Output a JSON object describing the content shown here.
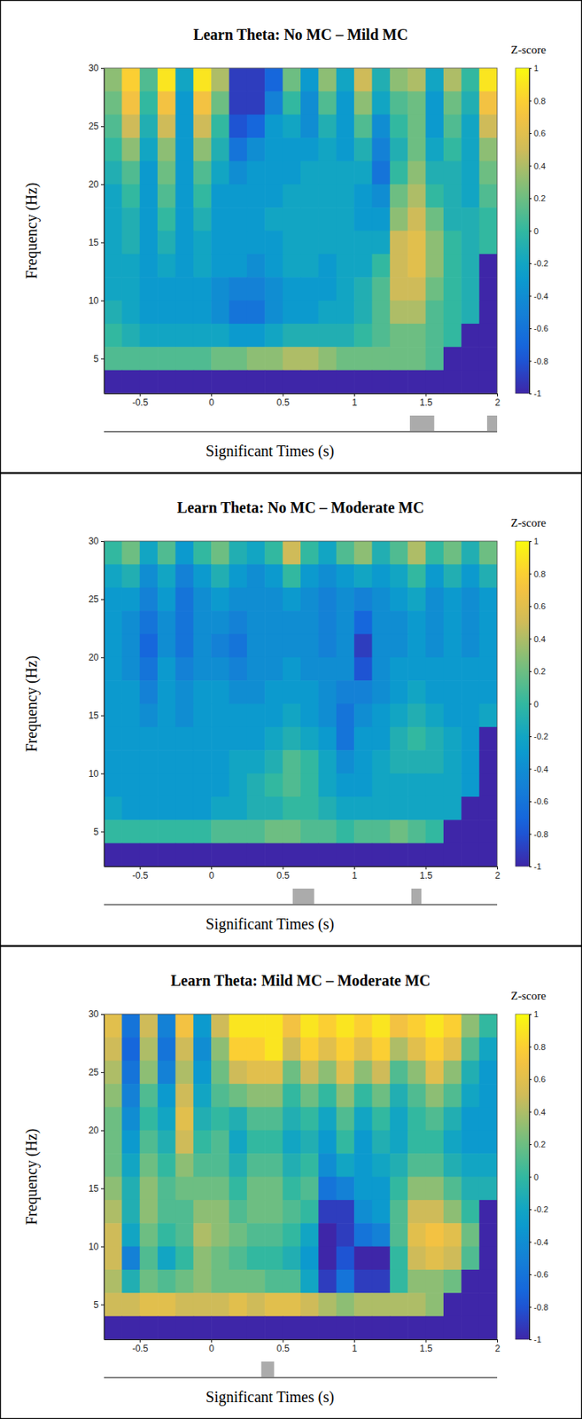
{
  "chart_data": [
    {
      "type": "heatmap",
      "title": "Learn Theta: No MC – Mild MC",
      "x_label": "Significant Times (s)",
      "y_label": "Frequency (Hz)",
      "x": [
        -0.6875,
        -0.5625,
        -0.4375,
        -0.3125,
        -0.1875,
        -0.0625,
        0.0625,
        0.1875,
        0.3125,
        0.4375,
        0.5625,
        0.6875,
        0.8125,
        0.9375,
        1.0625,
        1.1875,
        1.3125,
        1.4375,
        1.5625,
        1.6875,
        1.8125,
        1.9375
      ],
      "y": [
        29,
        27,
        25,
        23,
        21,
        19,
        17,
        15,
        13,
        11,
        9,
        7,
        5,
        3
      ],
      "values": [
        [
          0.3,
          0.8,
          0.1,
          0.9,
          -0.2,
          0.9,
          0.4,
          -0.9,
          -0.9,
          -0.7,
          0.2,
          -0.3,
          0.3,
          -0.2,
          0.5,
          -0.1,
          0.3,
          0.4,
          -0.2,
          0.4,
          0.0,
          0.9
        ],
        [
          0.2,
          0.7,
          0.0,
          0.7,
          -0.3,
          0.7,
          0.2,
          -0.9,
          -0.9,
          -0.5,
          0.0,
          -0.4,
          0.1,
          -0.3,
          0.3,
          -0.2,
          0.1,
          0.2,
          -0.3,
          0.2,
          -0.1,
          0.7
        ],
        [
          0.1,
          0.5,
          -0.1,
          0.5,
          -0.3,
          0.5,
          0.0,
          -0.8,
          -0.7,
          -0.3,
          -0.2,
          -0.4,
          -0.1,
          -0.3,
          0.1,
          -0.4,
          0.0,
          0.2,
          -0.3,
          0.1,
          -0.2,
          0.5
        ],
        [
          0.0,
          0.3,
          -0.2,
          0.3,
          -0.3,
          0.3,
          -0.1,
          -0.6,
          -0.4,
          -0.3,
          -0.3,
          -0.3,
          -0.2,
          -0.3,
          -0.1,
          -0.5,
          -0.1,
          0.2,
          -0.2,
          0.0,
          -0.2,
          0.3
        ],
        [
          -0.1,
          0.1,
          -0.3,
          0.2,
          -0.3,
          0.1,
          -0.2,
          -0.4,
          -0.3,
          -0.3,
          -0.3,
          -0.2,
          -0.2,
          -0.2,
          -0.2,
          -0.6,
          0.0,
          0.3,
          -0.1,
          -0.1,
          -0.2,
          0.2
        ],
        [
          -0.2,
          0.0,
          -0.3,
          0.1,
          -0.3,
          0.0,
          -0.3,
          -0.3,
          -0.3,
          -0.3,
          -0.2,
          -0.2,
          -0.2,
          -0.2,
          -0.3,
          -0.4,
          0.2,
          0.4,
          0.0,
          -0.1,
          -0.2,
          0.1
        ],
        [
          -0.2,
          -0.1,
          -0.3,
          0.0,
          -0.3,
          -0.1,
          -0.3,
          -0.3,
          -0.3,
          -0.2,
          -0.2,
          -0.2,
          -0.2,
          -0.2,
          -0.3,
          -0.3,
          0.3,
          0.5,
          0.2,
          -0.1,
          -0.1,
          0.0
        ],
        [
          -0.2,
          -0.1,
          -0.3,
          -0.1,
          -0.3,
          -0.2,
          -0.3,
          -0.3,
          -0.3,
          -0.3,
          -0.2,
          -0.2,
          -0.2,
          -0.2,
          -0.2,
          -0.2,
          0.5,
          0.6,
          0.3,
          0.0,
          -0.1,
          0.0
        ],
        [
          -0.2,
          -0.2,
          -0.3,
          -0.2,
          -0.3,
          -0.2,
          -0.3,
          -0.3,
          -0.4,
          -0.3,
          -0.2,
          -0.2,
          -0.3,
          -0.2,
          -0.2,
          0.0,
          0.5,
          0.6,
          0.3,
          0.0,
          -0.1,
          -1
        ],
        [
          -0.2,
          -0.2,
          -0.3,
          -0.3,
          -0.3,
          -0.3,
          -0.4,
          -0.5,
          -0.5,
          -0.4,
          -0.3,
          -0.3,
          -0.3,
          -0.2,
          -0.1,
          0.1,
          0.5,
          0.5,
          0.2,
          0.0,
          -0.1,
          -1
        ],
        [
          -0.1,
          -0.2,
          -0.3,
          -0.3,
          -0.3,
          -0.3,
          -0.4,
          -0.6,
          -0.6,
          -0.4,
          -0.3,
          -0.3,
          -0.2,
          -0.2,
          -0.1,
          0.1,
          0.4,
          0.4,
          0.1,
          0.0,
          -0.1,
          -1
        ],
        [
          0.0,
          -0.1,
          -0.2,
          -0.2,
          -0.2,
          -0.2,
          -0.2,
          -0.3,
          -0.3,
          -0.2,
          -0.1,
          -0.1,
          -0.1,
          -0.1,
          0.0,
          0.1,
          0.2,
          0.2,
          0.1,
          0.0,
          -1,
          -1
        ],
        [
          0.1,
          0.1,
          0.1,
          0.1,
          0.1,
          0.1,
          0.2,
          0.2,
          0.3,
          0.3,
          0.4,
          0.4,
          0.3,
          0.2,
          0.2,
          0.2,
          0.2,
          0.2,
          0.1,
          -1,
          -1,
          -1
        ],
        [
          -1,
          -1,
          -1,
          -1,
          -1,
          -1,
          -1,
          -1,
          -1,
          -1,
          -1,
          -1,
          -1,
          -1,
          -1,
          -1,
          -1,
          -1,
          -1,
          -1,
          -1,
          -1
        ]
      ],
      "xlim": [
        -0.75,
        2
      ],
      "xticks": [
        -0.5,
        0,
        0.5,
        1,
        1.5,
        2
      ],
      "ylim": [
        2,
        30
      ],
      "yticks": [
        5,
        10,
        15,
        20,
        25,
        30
      ],
      "colorbar": {
        "label": "Z-score",
        "range": [
          -1,
          1
        ],
        "ticks": [
          -1,
          -0.8,
          -0.6,
          -0.4,
          -0.2,
          0,
          0.2,
          0.4,
          0.6,
          0.8,
          1
        ]
      },
      "significant_times": [
        [
          1.39,
          1.56
        ],
        [
          1.93,
          2.0
        ]
      ]
    },
    {
      "type": "heatmap",
      "title": "Learn Theta: No MC – Moderate MC",
      "x_label": "Significant Times (s)",
      "y_label": "Frequency (Hz)",
      "x": [
        -0.6875,
        -0.5625,
        -0.4375,
        -0.3125,
        -0.1875,
        -0.0625,
        0.0625,
        0.1875,
        0.3125,
        0.4375,
        0.5625,
        0.6875,
        0.8125,
        0.9375,
        1.0625,
        1.1875,
        1.3125,
        1.4375,
        1.5625,
        1.6875,
        1.8125,
        1.9375
      ],
      "y": [
        29,
        27,
        25,
        23,
        21,
        19,
        17,
        15,
        13,
        11,
        9,
        7,
        5,
        3
      ],
      "values": [
        [
          0.0,
          0.2,
          -0.2,
          0.1,
          -0.3,
          0.0,
          0.2,
          -0.1,
          -0.2,
          0.0,
          0.5,
          0.0,
          -0.2,
          0.1,
          0.3,
          -0.1,
          0.1,
          0.4,
          0.0,
          0.2,
          -0.1,
          0.2
        ],
        [
          -0.2,
          -0.1,
          -0.4,
          -0.2,
          -0.5,
          -0.3,
          -0.1,
          -0.3,
          -0.4,
          -0.3,
          0.0,
          -0.3,
          -0.4,
          -0.3,
          -0.2,
          -0.3,
          -0.2,
          0.0,
          -0.3,
          -0.1,
          -0.3,
          -0.1
        ],
        [
          -0.3,
          -0.3,
          -0.5,
          -0.3,
          -0.6,
          -0.4,
          -0.3,
          -0.4,
          -0.4,
          -0.4,
          -0.3,
          -0.4,
          -0.5,
          -0.4,
          -0.5,
          -0.4,
          -0.3,
          -0.2,
          -0.4,
          -0.3,
          -0.4,
          -0.3
        ],
        [
          -0.3,
          -0.4,
          -0.6,
          -0.4,
          -0.6,
          -0.4,
          -0.4,
          -0.5,
          -0.4,
          -0.4,
          -0.4,
          -0.4,
          -0.5,
          -0.4,
          -0.7,
          -0.4,
          -0.4,
          -0.3,
          -0.4,
          -0.3,
          -0.4,
          -0.3
        ],
        [
          -0.3,
          -0.4,
          -0.7,
          -0.4,
          -0.6,
          -0.4,
          -0.5,
          -0.6,
          -0.4,
          -0.4,
          -0.4,
          -0.4,
          -0.5,
          -0.4,
          -0.9,
          -0.4,
          -0.4,
          -0.3,
          -0.4,
          -0.3,
          -0.4,
          -0.3
        ],
        [
          -0.3,
          -0.4,
          -0.6,
          -0.3,
          -0.5,
          -0.4,
          -0.4,
          -0.5,
          -0.4,
          -0.4,
          -0.3,
          -0.4,
          -0.4,
          -0.4,
          -0.8,
          -0.4,
          -0.3,
          -0.3,
          -0.3,
          -0.3,
          -0.3,
          -0.3
        ],
        [
          -0.3,
          -0.3,
          -0.5,
          -0.3,
          -0.4,
          -0.3,
          -0.3,
          -0.4,
          -0.4,
          -0.3,
          -0.3,
          -0.3,
          -0.4,
          -0.5,
          -0.5,
          -0.4,
          -0.3,
          -0.2,
          -0.3,
          -0.3,
          -0.3,
          -0.3
        ],
        [
          -0.3,
          -0.3,
          -0.4,
          -0.3,
          -0.4,
          -0.3,
          -0.3,
          -0.3,
          -0.3,
          -0.3,
          -0.2,
          -0.3,
          -0.4,
          -0.6,
          -0.4,
          -0.3,
          -0.2,
          -0.1,
          -0.2,
          -0.3,
          -0.3,
          -0.2
        ],
        [
          -0.3,
          -0.3,
          -0.3,
          -0.3,
          -0.3,
          -0.3,
          -0.3,
          -0.3,
          -0.3,
          -0.2,
          -0.1,
          -0.2,
          -0.3,
          -0.6,
          -0.3,
          -0.3,
          -0.1,
          0.0,
          -0.1,
          -0.2,
          -0.3,
          -1
        ],
        [
          -0.3,
          -0.3,
          -0.3,
          -0.3,
          -0.3,
          -0.3,
          -0.3,
          -0.2,
          -0.2,
          -0.1,
          0.1,
          0.0,
          -0.2,
          -0.4,
          -0.3,
          -0.2,
          -0.1,
          -0.1,
          -0.1,
          -0.2,
          -0.3,
          -1
        ],
        [
          -0.3,
          -0.3,
          -0.3,
          -0.3,
          -0.3,
          -0.3,
          -0.3,
          -0.2,
          -0.1,
          0.0,
          0.1,
          0.0,
          -0.2,
          -0.3,
          -0.3,
          -0.2,
          -0.2,
          -0.2,
          -0.2,
          -0.2,
          -0.3,
          -1
        ],
        [
          -0.2,
          -0.3,
          -0.3,
          -0.3,
          -0.3,
          -0.3,
          -0.2,
          -0.2,
          -0.1,
          -0.1,
          0.0,
          0.0,
          -0.1,
          -0.2,
          -0.2,
          -0.2,
          -0.2,
          -0.2,
          -0.2,
          -0.2,
          -1,
          -1
        ],
        [
          0.0,
          0.0,
          0.0,
          0.0,
          0.0,
          0.0,
          0.1,
          0.1,
          0.1,
          0.2,
          0.2,
          0.1,
          0.1,
          0.0,
          0.1,
          0.1,
          0.2,
          0.1,
          0.0,
          -1,
          -1,
          -1
        ],
        [
          -1,
          -1,
          -1,
          -1,
          -1,
          -1,
          -1,
          -1,
          -1,
          -1,
          -1,
          -1,
          -1,
          -1,
          -1,
          -1,
          -1,
          -1,
          -1,
          -1,
          -1,
          -1
        ]
      ],
      "xlim": [
        -0.75,
        2
      ],
      "xticks": [
        -0.5,
        0,
        0.5,
        1,
        1.5,
        2
      ],
      "ylim": [
        2,
        30
      ],
      "yticks": [
        5,
        10,
        15,
        20,
        25,
        30
      ],
      "colorbar": {
        "label": "Z-score",
        "range": [
          -1,
          1
        ],
        "ticks": [
          -1,
          -0.8,
          -0.6,
          -0.4,
          -0.2,
          0,
          0.2,
          0.4,
          0.6,
          0.8,
          1
        ]
      },
      "significant_times": [
        [
          0.57,
          0.72
        ],
        [
          1.4,
          1.47
        ]
      ]
    },
    {
      "type": "heatmap",
      "title": "Learn Theta: Mild MC – Moderate MC",
      "x_label": "Significant Times (s)",
      "y_label": "Frequency (Hz)",
      "x": [
        -0.6875,
        -0.5625,
        -0.4375,
        -0.3125,
        -0.1875,
        -0.0625,
        0.0625,
        0.1875,
        0.3125,
        0.4375,
        0.5625,
        0.6875,
        0.8125,
        0.9375,
        1.0625,
        1.1875,
        1.3125,
        1.4375,
        1.5625,
        1.6875,
        1.8125,
        1.9375
      ],
      "y": [
        29,
        27,
        25,
        23,
        21,
        19,
        17,
        15,
        13,
        11,
        9,
        7,
        5,
        3
      ],
      "values": [
        [
          0.6,
          -0.6,
          0.5,
          -0.5,
          0.7,
          -0.3,
          0.5,
          0.9,
          0.9,
          0.9,
          0.7,
          0.9,
          0.8,
          0.9,
          0.8,
          0.9,
          0.7,
          0.8,
          0.9,
          0.8,
          0.3,
          0.0
        ],
        [
          0.5,
          -0.7,
          0.4,
          -0.6,
          0.5,
          -0.4,
          0.3,
          0.8,
          0.8,
          0.9,
          0.5,
          0.8,
          0.6,
          0.8,
          0.6,
          0.8,
          0.4,
          0.6,
          0.8,
          0.6,
          0.1,
          -0.2
        ],
        [
          0.4,
          -0.6,
          0.3,
          -0.5,
          0.4,
          -0.3,
          0.2,
          0.5,
          0.6,
          0.6,
          0.2,
          0.5,
          0.3,
          0.6,
          0.3,
          0.5,
          0.1,
          0.3,
          0.6,
          0.3,
          -0.1,
          -0.3
        ],
        [
          0.3,
          -0.5,
          0.1,
          -0.3,
          0.5,
          -0.2,
          0.1,
          0.2,
          0.3,
          0.3,
          0.0,
          0.2,
          0.0,
          0.3,
          0.0,
          0.2,
          -0.1,
          0.1,
          0.3,
          0.1,
          -0.2,
          -0.3
        ],
        [
          0.2,
          -0.4,
          0.0,
          -0.2,
          0.6,
          -0.1,
          0.0,
          -0.1,
          0.1,
          0.1,
          -0.1,
          0.0,
          -0.2,
          0.1,
          -0.2,
          0.0,
          -0.2,
          0.0,
          0.1,
          -0.1,
          -0.3,
          -0.3
        ],
        [
          0.2,
          -0.3,
          0.1,
          -0.1,
          0.5,
          0.0,
          0.1,
          -0.2,
          0.0,
          0.0,
          -0.2,
          -0.1,
          -0.3,
          0.0,
          -0.3,
          -0.1,
          -0.2,
          0.0,
          0.0,
          -0.2,
          -0.3,
          -0.3
        ],
        [
          0.2,
          -0.2,
          0.2,
          0.0,
          0.3,
          0.1,
          0.1,
          -0.1,
          0.1,
          0.1,
          -0.1,
          0.0,
          -0.4,
          -0.2,
          -0.3,
          -0.2,
          -0.1,
          0.1,
          0.1,
          -0.1,
          -0.2,
          -0.2
        ],
        [
          0.3,
          -0.1,
          0.3,
          0.1,
          0.2,
          0.2,
          0.2,
          0.0,
          0.2,
          0.2,
          0.0,
          0.1,
          -0.6,
          -0.5,
          -0.3,
          -0.3,
          0.0,
          0.3,
          0.3,
          0.1,
          -0.1,
          -0.1
        ],
        [
          0.4,
          -0.1,
          0.3,
          0.1,
          0.1,
          0.3,
          0.3,
          0.1,
          0.2,
          0.2,
          0.1,
          0.0,
          -0.9,
          -0.9,
          -0.4,
          -0.3,
          0.1,
          0.5,
          0.5,
          0.3,
          0.0,
          -1
        ],
        [
          0.5,
          -0.2,
          0.2,
          0.0,
          0.1,
          0.4,
          0.3,
          0.2,
          0.1,
          0.1,
          0.0,
          -0.2,
          -1.0,
          -0.9,
          -0.6,
          -0.5,
          0.1,
          0.6,
          0.7,
          0.6,
          0.2,
          -1
        ],
        [
          0.5,
          -0.5,
          0.1,
          -0.2,
          0.0,
          0.3,
          0.2,
          0.1,
          0.0,
          0.0,
          -0.1,
          -0.3,
          -1.0,
          -0.8,
          -1.0,
          -1.0,
          0.0,
          0.5,
          0.6,
          0.5,
          0.1,
          -1
        ],
        [
          0.4,
          -0.1,
          0.2,
          0.1,
          0.2,
          0.3,
          0.2,
          0.2,
          0.2,
          0.1,
          0.1,
          -0.2,
          -0.9,
          -0.6,
          -0.9,
          -0.9,
          0.0,
          0.3,
          0.3,
          0.2,
          -1,
          -1
        ],
        [
          0.5,
          0.5,
          0.6,
          0.6,
          0.5,
          0.5,
          0.5,
          0.6,
          0.5,
          0.6,
          0.6,
          0.5,
          0.4,
          0.3,
          0.4,
          0.4,
          0.4,
          0.4,
          0.3,
          -1,
          -1,
          -1
        ],
        [
          -1,
          -1,
          -1,
          -1,
          -1,
          -1,
          -1,
          -1,
          -1,
          -1,
          -1,
          -1,
          -1,
          -1,
          -1,
          -1,
          -1,
          -1,
          -1,
          -1,
          -1,
          -1
        ]
      ],
      "xlim": [
        -0.75,
        2
      ],
      "xticks": [
        -0.5,
        0,
        0.5,
        1,
        1.5,
        2
      ],
      "ylim": [
        2,
        30
      ],
      "yticks": [
        5,
        10,
        15,
        20,
        25,
        30
      ],
      "colorbar": {
        "label": "Z-score",
        "range": [
          -1,
          1
        ],
        "ticks": [
          -1,
          -0.8,
          -0.6,
          -0.4,
          -0.2,
          0,
          0.2,
          0.4,
          0.6,
          0.8,
          1
        ]
      },
      "significant_times": [
        [
          0.35,
          0.44
        ]
      ]
    }
  ]
}
